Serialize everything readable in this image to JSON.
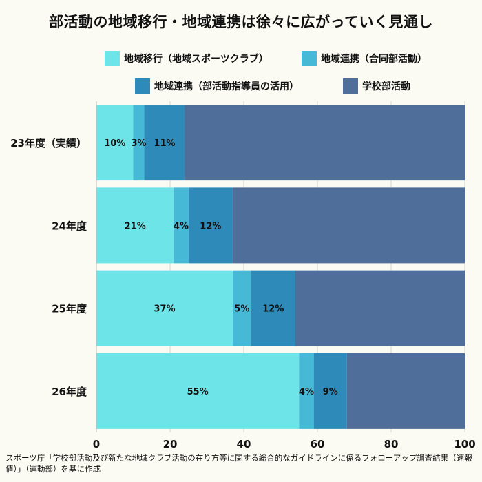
{
  "title": "部活動の地域移行・地域連携は徐々に広がっていく見通し",
  "legend": [
    {
      "label": "地域移行（地域スポーツクラブ）",
      "color": "#6ce4e8"
    },
    {
      "label": "地域連携（合同部活動）",
      "color": "#45b9d6"
    },
    {
      "label": "地域連携（部活動指導員の活用）",
      "color": "#2e8ab8"
    },
    {
      "label": "学校部活動",
      "color": "#4f6e99"
    }
  ],
  "source": "スポーツ庁「学校部活動及び新たな地域クラブ活動の在り方等に関する総合的なガイドラインに係るフォローアップ調査結果（速報値）」（運動部）を基に作成",
  "chart_data": {
    "type": "bar",
    "orientation": "horizontal",
    "stacked": true,
    "categories": [
      "23年度（実績）",
      "24年度",
      "25年度",
      "26年度"
    ],
    "series": [
      {
        "name": "地域移行（地域スポーツクラブ）",
        "values": [
          10,
          21,
          37,
          55
        ],
        "labels": [
          "10%",
          "21%",
          "37%",
          "55%"
        ],
        "color": "#6ce4e8"
      },
      {
        "name": "地域連携（合同部活動）",
        "values": [
          3,
          4,
          5,
          4
        ],
        "labels": [
          "3%",
          "4%",
          "5%",
          "4%"
        ],
        "color": "#45b9d6"
      },
      {
        "name": "地域連携（部活動指導員の活用）",
        "values": [
          11,
          12,
          12,
          9
        ],
        "labels": [
          "11%",
          "12%",
          "12%",
          "9%"
        ],
        "color": "#2e8ab8"
      },
      {
        "name": "学校部活動",
        "values": [
          76,
          63,
          46,
          32
        ],
        "labels": [
          "",
          "",
          "",
          ""
        ],
        "color": "#4f6e99"
      }
    ],
    "xlim": [
      0,
      100
    ],
    "xticks": [
      "0",
      "20",
      "40",
      "60",
      "80",
      "100"
    ],
    "grid": true,
    "legend_position": "top"
  }
}
